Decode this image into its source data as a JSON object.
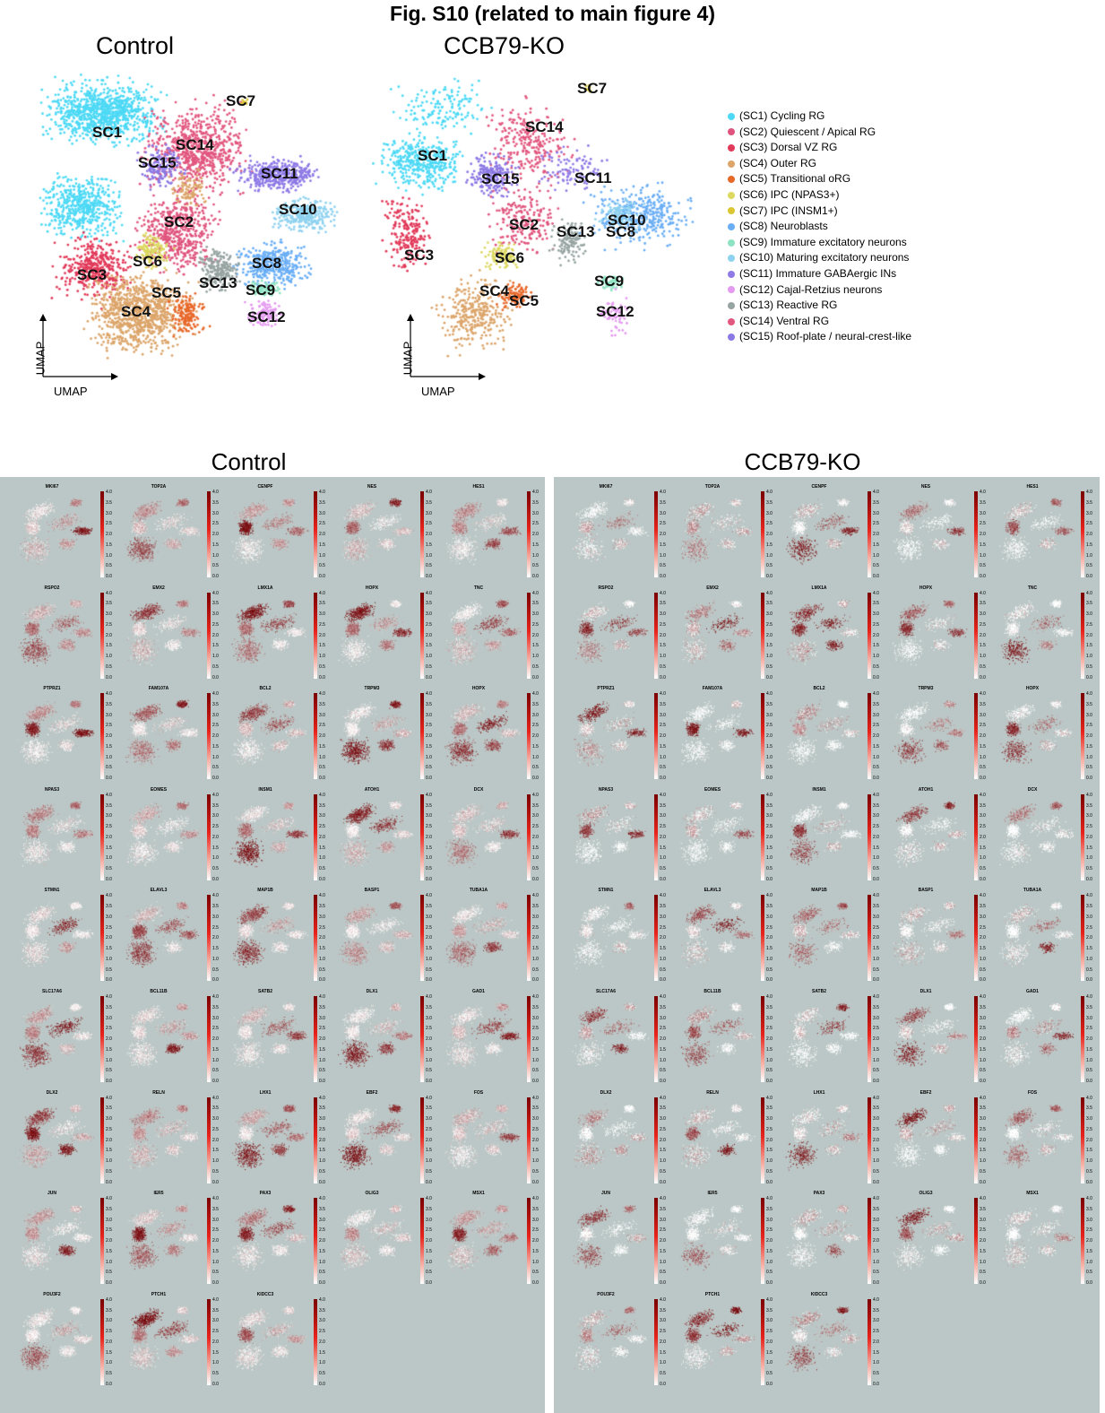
{
  "title": "Fig. S10 (related to main figure 4)",
  "umap": {
    "control_title": "Control",
    "ko_title": "CCB79-KO",
    "axis_x": "UMAP",
    "axis_y": "UMAP"
  },
  "clusters": [
    {
      "id": "SC1",
      "label": "(SC1) Cycling RG",
      "color": "#4dd9f5"
    },
    {
      "id": "SC2",
      "label": "(SC2) Quiescent / Apical RG",
      "color": "#e0557e"
    },
    {
      "id": "SC3",
      "label": "(SC3) Dorsal VZ RG",
      "color": "#e23a5a"
    },
    {
      "id": "SC4",
      "label": "(SC4) Outer RG",
      "color": "#dca56a"
    },
    {
      "id": "SC5",
      "label": "(SC5) Transitional oRG",
      "color": "#e8682a"
    },
    {
      "id": "SC6",
      "label": "(SC6) IPC (NPAS3+)",
      "color": "#dcd860"
    },
    {
      "id": "SC7",
      "label": "(SC7) IPC (INSM1+)",
      "color": "#dcc634"
    },
    {
      "id": "SC8",
      "label": "(SC8) Neuroblasts",
      "color": "#6aaef5"
    },
    {
      "id": "SC9",
      "label": "(SC9) Immature excitatory neurons",
      "color": "#8ee3c2"
    },
    {
      "id": "SC10",
      "label": "(SC10) Maturing excitatory neurons",
      "color": "#8fd2f0"
    },
    {
      "id": "SC11",
      "label": "(SC11) Immature GABAergic INs",
      "color": "#8f7ae6"
    },
    {
      "id": "SC12",
      "label": "(SC12) Cajal-Retzius neurons",
      "color": "#e49af0"
    },
    {
      "id": "SC13",
      "label": "(SC13) Reactive RG",
      "color": "#96a4a2"
    },
    {
      "id": "SC14",
      "label": "(SC14) Ventral RG",
      "color": "#e2577f"
    },
    {
      "id": "SC15",
      "label": "(SC15) Roof-plate / neural-crest-like",
      "color": "#8c78e4"
    }
  ],
  "features": {
    "control_title": "Control",
    "ko_title": "CCB79-KO",
    "colorbar_ticks": [
      "4.0",
      "3.5",
      "3.0",
      "2.5",
      "2.0",
      "1.5",
      "1.0",
      "0.5",
      "0.0"
    ],
    "genes": [
      "MKI67",
      "TOP2A",
      "CENPF",
      "NES",
      "HES1",
      "RSPO2",
      "EMX2",
      "LMX1A",
      "HOPX",
      "TNC",
      "PTPRZ1",
      "FAM107A",
      "BCL2",
      "TRPM3",
      "HOPX",
      "NPAS3",
      "EOMES",
      "INSM1",
      "ATOH1",
      "DCX",
      "STMN1",
      "ELAVL3",
      "MAP1B",
      "BASP1",
      "TUBA1A",
      "SLC17A6",
      "BCL11B",
      "SATB2",
      "DLX1",
      "GAD1",
      "DLX2",
      "RELN",
      "LHX1",
      "EBF2",
      "FOS",
      "JUN",
      "IER5",
      "PAX3",
      "OLIG3",
      "MSX1",
      "POU3F2",
      "PTCH1",
      "KIDCC3"
    ]
  }
}
